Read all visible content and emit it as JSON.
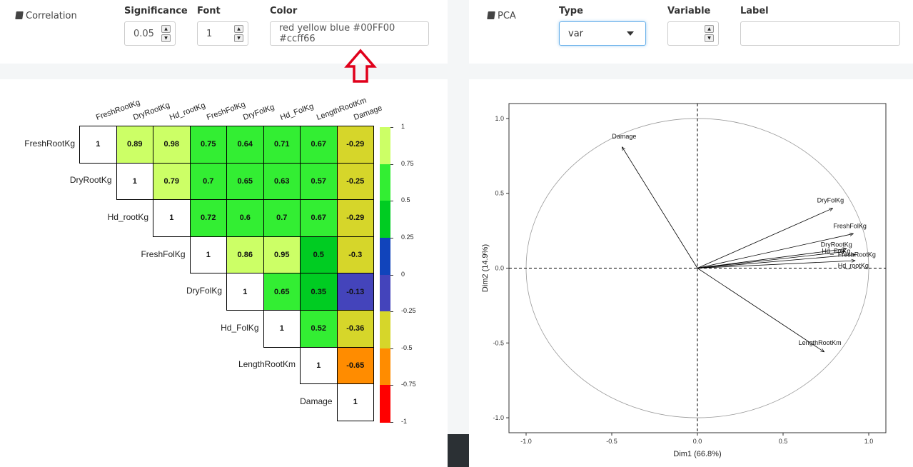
{
  "correlation_panel": {
    "title": "Correlation",
    "significance": {
      "label": "Significance",
      "value": "0.05"
    },
    "font": {
      "label": "Font",
      "value": "1"
    },
    "color": {
      "label": "Color",
      "value": "red  yellow blue #00FF00 #ccff66"
    }
  },
  "pca_panel": {
    "title": "PCA",
    "type": {
      "label": "Type",
      "value": "var"
    },
    "variable": {
      "label": "Variable",
      "value": ""
    },
    "label": {
      "label": "Label",
      "value": ""
    }
  },
  "annotation": {
    "arrow_color": "#e0001b"
  },
  "correlation_matrix": {
    "variables": [
      "FreshRootKg",
      "DryRootKg",
      "Hd_rootKg",
      "FreshFolKg",
      "DryFolKg",
      "Hd_FolKg",
      "LengthRootKm",
      "Damage"
    ],
    "rows": [
      [
        "1",
        "0.89",
        "0.98",
        "0.75",
        "0.64",
        "0.71",
        "0.67",
        "-0.29"
      ],
      [
        "1",
        "0.79",
        "0.7",
        "0.65",
        "0.63",
        "0.57",
        "-0.25"
      ],
      [
        "1",
        "0.72",
        "0.6",
        "0.7",
        "0.67",
        "-0.29"
      ],
      [
        "1",
        "0.86",
        "0.95",
        "0.5",
        "-0.3"
      ],
      [
        "1",
        "0.65",
        "0.35",
        "-0.13"
      ],
      [
        "1",
        "0.52",
        "-0.36"
      ],
      [
        "1",
        "-0.65"
      ],
      [
        "1"
      ]
    ],
    "colorbar_ticks": [
      "1",
      "0.75",
      "0.5",
      "0.25",
      "0",
      "-0.25",
      "-0.5",
      "-0.75",
      "-1"
    ],
    "colorbar_colors": [
      "#ccff66",
      "#33ee33",
      "#00cc22",
      "#1144bb",
      "#4444bb",
      "#d6d62a",
      "#ff8c00",
      "#ff0000"
    ]
  },
  "chart_data": {
    "type": "scatter",
    "title": "",
    "xlabel": "Dim1 (66.8%)",
    "ylabel": "Dim2 (14.9%)",
    "xlim": [
      -1.1,
      1.1
    ],
    "ylim": [
      -1.1,
      1.1
    ],
    "xticks": [
      "-1.0",
      "-0.5",
      "0.0",
      "0.5",
      "1.0"
    ],
    "yticks": [
      "1.0",
      "0.5",
      "0.0",
      "-0.5",
      "-1.0"
    ],
    "unit_circle": true,
    "vectors": [
      {
        "name": "Damage",
        "x": -0.44,
        "y": 0.81
      },
      {
        "name": "DryFolKg",
        "x": 0.79,
        "y": 0.4
      },
      {
        "name": "FreshFolKg",
        "x": 0.91,
        "y": 0.23
      },
      {
        "name": "DryRootKg",
        "x": 0.87,
        "y": 0.13
      },
      {
        "name": "Hd_FolKg",
        "x": 0.86,
        "y": 0.11
      },
      {
        "name": "FreshRootKg",
        "x": 0.92,
        "y": 0.09
      },
      {
        "name": "Hd_rootKg",
        "x": 0.92,
        "y": 0.05
      },
      {
        "name": "LengthRootKm",
        "x": 0.74,
        "y": -0.56
      }
    ]
  }
}
